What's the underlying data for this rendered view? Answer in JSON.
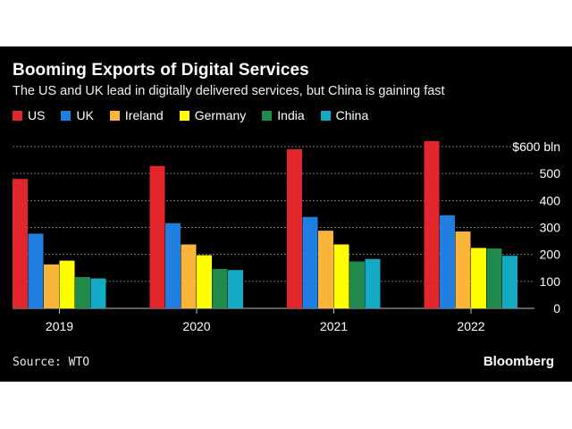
{
  "chart_data": {
    "type": "bar",
    "title": "Booming Exports of Digital Services",
    "subtitle": "The US and UK lead in digitally delivered services, but China is gaining fast",
    "categories": [
      "2019",
      "2020",
      "2021",
      "2022"
    ],
    "series": [
      {
        "name": "US",
        "color": "#e3262b",
        "values": [
          480,
          528,
          590,
          620
        ]
      },
      {
        "name": "UK",
        "color": "#1e7fe0",
        "values": [
          277,
          316,
          339,
          345
        ]
      },
      {
        "name": "Ireland",
        "color": "#fcb53b",
        "values": [
          163,
          237,
          288,
          285
        ]
      },
      {
        "name": "Germany",
        "color": "#ffff00",
        "values": [
          177,
          197,
          237,
          224
        ]
      },
      {
        "name": "India",
        "color": "#1f8a4c",
        "values": [
          116,
          146,
          174,
          222
        ]
      },
      {
        "name": "China",
        "color": "#14a9c4",
        "values": [
          111,
          142,
          183,
          195
        ]
      }
    ],
    "y_ticks": [
      "$600 bln",
      "500",
      "400",
      "300",
      "200",
      "100",
      "0"
    ],
    "ylim": [
      0,
      600
    ],
    "grid": true
  },
  "footer": {
    "source": "Source: WTO",
    "brand": "Bloomberg"
  }
}
